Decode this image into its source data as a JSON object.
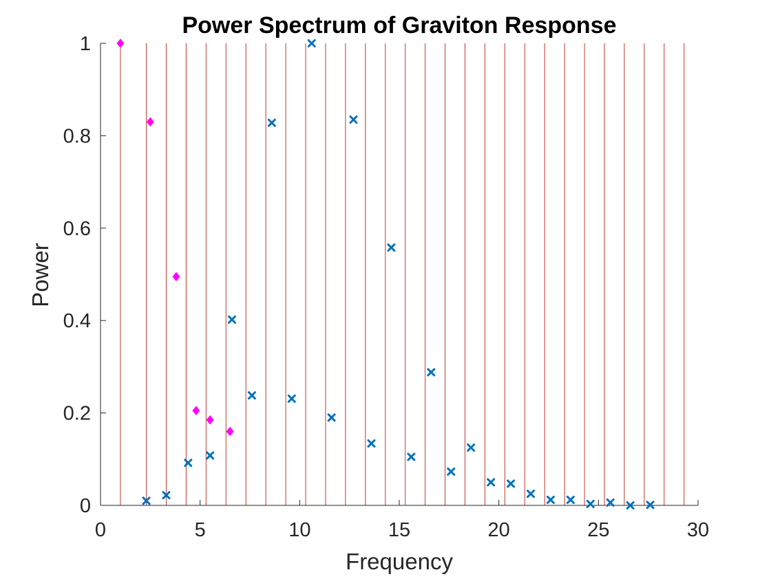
{
  "chart_data": {
    "type": "scatter",
    "title": "Power Spectrum of Graviton Response",
    "xlabel": "Frequency",
    "ylabel": "Power",
    "xlim": [
      0,
      30
    ],
    "ylim": [
      0,
      1
    ],
    "xticks": [
      0,
      5,
      10,
      15,
      20,
      25,
      30
    ],
    "yticks": [
      0,
      0.2,
      0.4,
      0.6,
      0.8,
      1
    ],
    "ytick_labels": [
      "0",
      "0.2",
      "0.4",
      "0.6",
      "0.8",
      "1"
    ],
    "grid": false,
    "legend": "none",
    "vertical_lines": {
      "color": "#c0392b",
      "x": [
        1,
        2.3,
        3.3,
        4.3,
        5.3,
        6.3,
        7.3,
        8.3,
        9.3,
        10.3,
        11.3,
        12.3,
        13.3,
        14.3,
        15.3,
        16.3,
        17.3,
        18.3,
        19.3,
        20.3,
        21.3,
        22.3,
        23.3,
        24.3,
        25.3,
        26.3,
        27.3,
        28.3,
        29.3
      ]
    },
    "series": [
      {
        "marker": "diamond",
        "color": "#ff00ff",
        "points": [
          {
            "x": 1.0,
            "y": 1.0
          },
          {
            "x": 2.5,
            "y": 0.83
          },
          {
            "x": 3.8,
            "y": 0.495
          },
          {
            "x": 4.8,
            "y": 0.205
          },
          {
            "x": 5.5,
            "y": 0.185
          },
          {
            "x": 6.5,
            "y": 0.16
          }
        ]
      },
      {
        "marker": "x",
        "color": "#0072bd",
        "points": [
          {
            "x": 2.3,
            "y": 0.01
          },
          {
            "x": 3.3,
            "y": 0.022
          },
          {
            "x": 4.4,
            "y": 0.092
          },
          {
            "x": 5.5,
            "y": 0.108
          },
          {
            "x": 6.6,
            "y": 0.402
          },
          {
            "x": 7.6,
            "y": 0.238
          },
          {
            "x": 8.6,
            "y": 0.828
          },
          {
            "x": 9.6,
            "y": 0.231
          },
          {
            "x": 10.6,
            "y": 1.0
          },
          {
            "x": 11.6,
            "y": 0.19
          },
          {
            "x": 12.7,
            "y": 0.835
          },
          {
            "x": 13.6,
            "y": 0.134
          },
          {
            "x": 14.6,
            "y": 0.558
          },
          {
            "x": 15.6,
            "y": 0.105
          },
          {
            "x": 16.6,
            "y": 0.288
          },
          {
            "x": 17.6,
            "y": 0.073
          },
          {
            "x": 18.6,
            "y": 0.125
          },
          {
            "x": 19.6,
            "y": 0.05
          },
          {
            "x": 20.6,
            "y": 0.047
          },
          {
            "x": 21.6,
            "y": 0.025
          },
          {
            "x": 22.6,
            "y": 0.012
          },
          {
            "x": 23.6,
            "y": 0.012
          },
          {
            "x": 24.6,
            "y": 0.003
          },
          {
            "x": 25.6,
            "y": 0.006
          },
          {
            "x": 26.6,
            "y": 0.0
          },
          {
            "x": 27.6,
            "y": 0.001
          }
        ]
      }
    ]
  }
}
